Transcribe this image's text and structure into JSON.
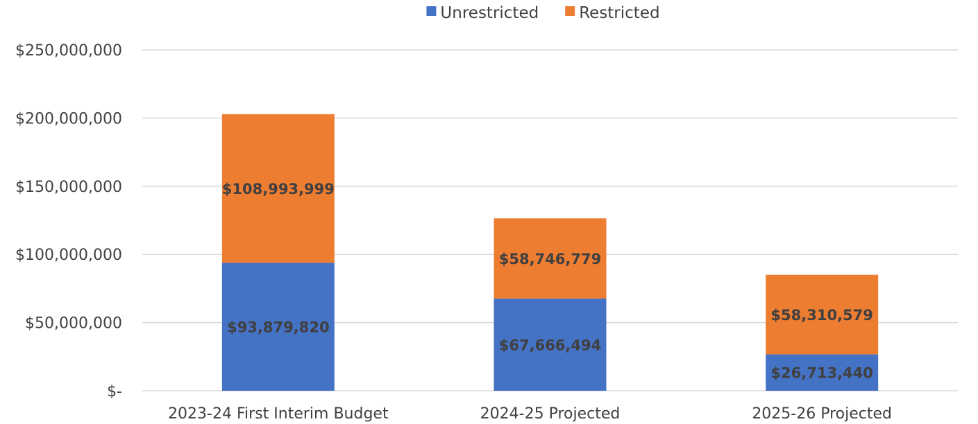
{
  "chart_data": {
    "type": "bar",
    "stacked": true,
    "categories": [
      "2023-24 First Interim Budget",
      "2024-25 Projected",
      "2025-26 Projected"
    ],
    "series": [
      {
        "name": "Unrestricted",
        "color": "#4472c4",
        "values": [
          93879820,
          67666494,
          26713440
        ],
        "labels": [
          "$93,879,820",
          "$67,666,494",
          "$26,713,440"
        ]
      },
      {
        "name": "Restricted",
        "color": "#ed7d31",
        "values": [
          108993999,
          58746779,
          58310579
        ],
        "labels": [
          "$108,993,999",
          "$58,746,779",
          "$58,310,579"
        ]
      }
    ],
    "y_ticks": [
      0,
      50000000,
      100000000,
      150000000,
      200000000,
      250000000
    ],
    "y_tick_labels": [
      "$-",
      "$50,000,000",
      "$100,000,000",
      "$150,000,000",
      "$200,000,000",
      "$250,000,000"
    ],
    "ylim": [
      0,
      250000000
    ],
    "grid": true,
    "legend_position": "top-center"
  }
}
